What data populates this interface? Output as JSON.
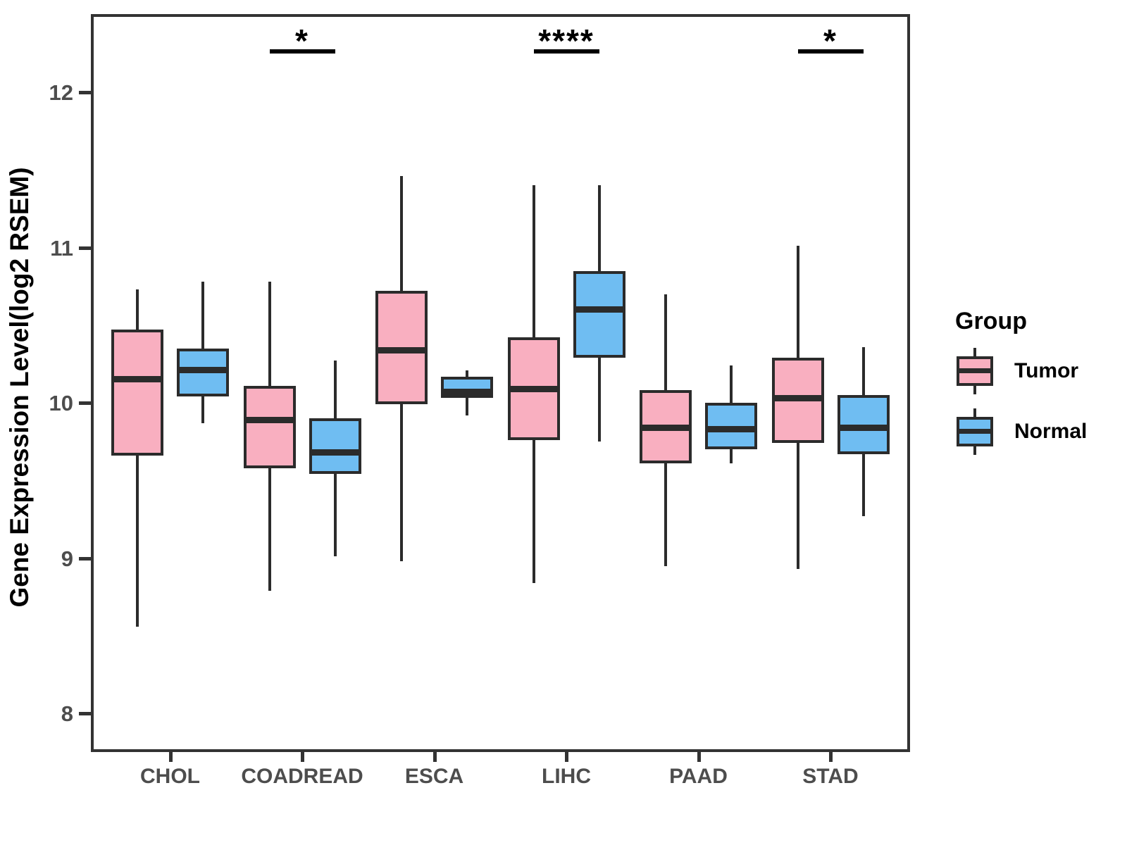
{
  "y_axis": {
    "title": "Gene Expression Level(log2 RSEM)",
    "ticks": [
      12,
      11,
      10,
      9,
      8
    ]
  },
  "legend": {
    "title": "Group",
    "items": [
      {
        "label": "Tumor",
        "color": "#f9afc0"
      },
      {
        "label": "Normal",
        "color": "#6fbdf2"
      }
    ]
  },
  "chart_data": {
    "type": "boxplot",
    "title": "",
    "xlabel": "",
    "ylabel": "Gene Expression Level(log2 RSEM)",
    "ylim": [
      7.75,
      12.5
    ],
    "grid": false,
    "legend_position": "right",
    "categories": [
      "CHOL",
      "COADREAD",
      "ESCA",
      "LIHC",
      "PAAD",
      "STAD"
    ],
    "series": [
      {
        "name": "Tumor",
        "color": "#f9afc0",
        "boxes": [
          {
            "category": "CHOL",
            "min": 8.56,
            "q1": 9.66,
            "median": 10.15,
            "q3": 10.47,
            "max": 10.73
          },
          {
            "category": "COADREAD",
            "min": 8.79,
            "q1": 9.58,
            "median": 9.89,
            "q3": 10.11,
            "max": 10.78
          },
          {
            "category": "ESCA",
            "min": 8.98,
            "q1": 9.99,
            "median": 10.34,
            "q3": 10.72,
            "max": 11.46
          },
          {
            "category": "LIHC",
            "min": 8.84,
            "q1": 9.76,
            "median": 10.09,
            "q3": 10.42,
            "max": 11.4
          },
          {
            "category": "PAAD",
            "min": 8.95,
            "q1": 9.61,
            "median": 9.84,
            "q3": 10.08,
            "max": 10.7
          },
          {
            "category": "STAD",
            "min": 8.93,
            "q1": 9.74,
            "median": 10.03,
            "q3": 10.29,
            "max": 11.01
          }
        ]
      },
      {
        "name": "Normal",
        "color": "#6fbdf2",
        "boxes": [
          {
            "category": "CHOL",
            "min": 9.87,
            "q1": 10.04,
            "median": 10.21,
            "q3": 10.35,
            "max": 10.78
          },
          {
            "category": "COADREAD",
            "min": 9.01,
            "q1": 9.54,
            "median": 9.68,
            "q3": 9.9,
            "max": 10.27
          },
          {
            "category": "ESCA",
            "min": 9.92,
            "q1": 10.03,
            "median": 10.07,
            "q3": 10.17,
            "max": 10.21
          },
          {
            "category": "LIHC",
            "min": 9.75,
            "q1": 10.29,
            "median": 10.6,
            "q3": 10.85,
            "max": 11.4
          },
          {
            "category": "PAAD",
            "min": 9.61,
            "q1": 9.7,
            "median": 9.83,
            "q3": 10.0,
            "max": 10.24
          },
          {
            "category": "STAD",
            "min": 9.27,
            "q1": 9.67,
            "median": 9.84,
            "q3": 10.05,
            "max": 10.36
          }
        ]
      }
    ],
    "significance": [
      {
        "category": "COADREAD",
        "label": "*"
      },
      {
        "category": "LIHC",
        "label": "****"
      },
      {
        "category": "STAD",
        "label": "*"
      }
    ]
  }
}
